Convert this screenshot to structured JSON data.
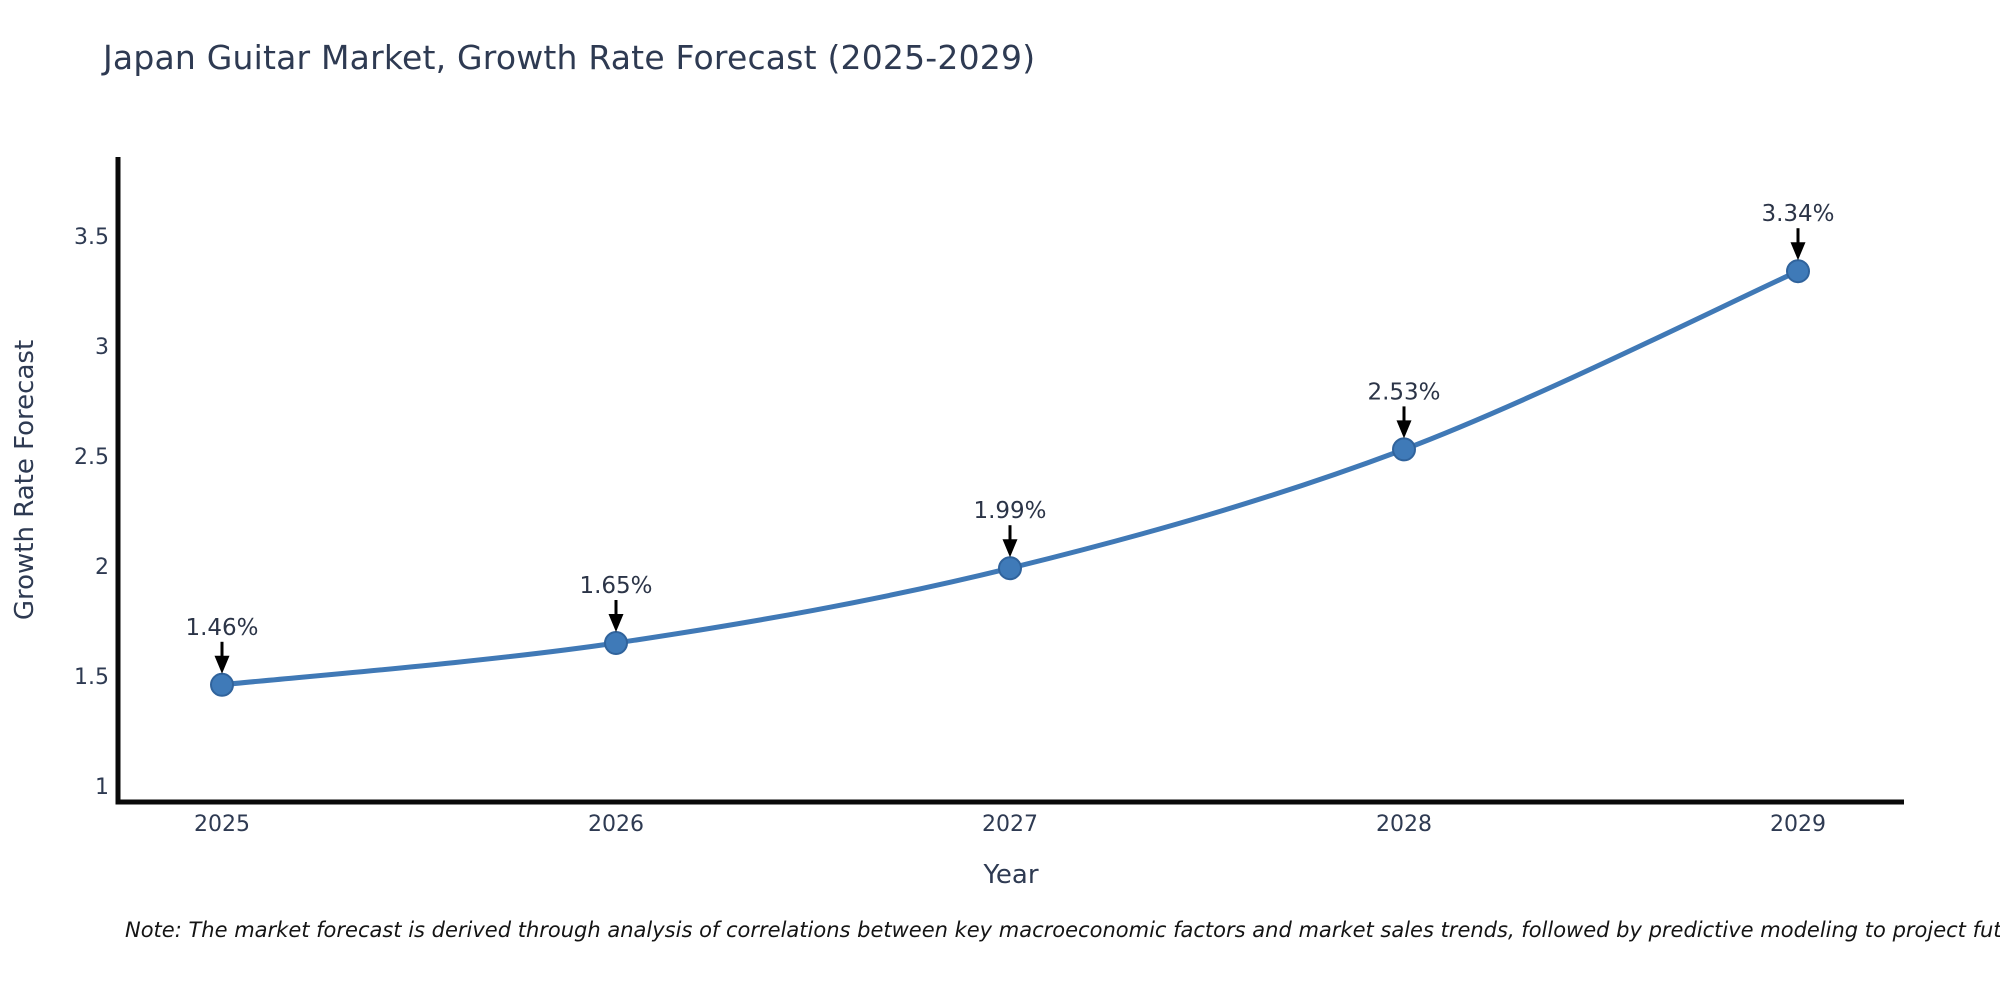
{
  "chart": {
    "title": "Japan Guitar Market, Growth Rate Forecast (2025-2029)",
    "xlabel": "Year",
    "ylabel": "Growth Rate Forecast",
    "note": "Note: The market forecast is derived through analysis of correlations between key macroeconomic factors and market sales trends, followed by predictive modeling to project future sales"
  },
  "chart_data": {
    "type": "line",
    "title": "Japan Guitar Market, Growth Rate Forecast (2025-2029)",
    "xlabel": "Year",
    "ylabel": "Growth Rate Forecast",
    "x": [
      2025,
      2026,
      2027,
      2028,
      2029
    ],
    "x_tick_labels": [
      "2025",
      "2026",
      "2027",
      "2028",
      "2029"
    ],
    "series": [
      {
        "name": "Growth Rate Forecast",
        "values": [
          1.46,
          1.65,
          1.99,
          2.53,
          3.34
        ]
      }
    ],
    "point_labels": [
      "1.46%",
      "1.65%",
      "1.99%",
      "2.53%",
      "3.34%"
    ],
    "yticks": [
      1,
      1.5,
      2,
      2.5,
      3,
      3.5
    ],
    "ytick_labels": [
      "1",
      "1.5",
      "2",
      "2.5",
      "3",
      "3.5"
    ],
    "ylim": [
      0.93,
      3.92
    ],
    "xlim": [
      2024.74,
      2029.27
    ],
    "grid": false,
    "legend_position": "none",
    "annotation_style": "down-arrow",
    "colors": {
      "line": "#4079b6",
      "marker_fill": "#3f7ab8",
      "marker_edge": "#30639c",
      "arrow": "#000000",
      "axis": "#0a0a0a",
      "tick_text": "#2e3a52",
      "annotation_text": "#2b3447",
      "title_text": "#2e3a52",
      "background": "#ffffff"
    }
  }
}
